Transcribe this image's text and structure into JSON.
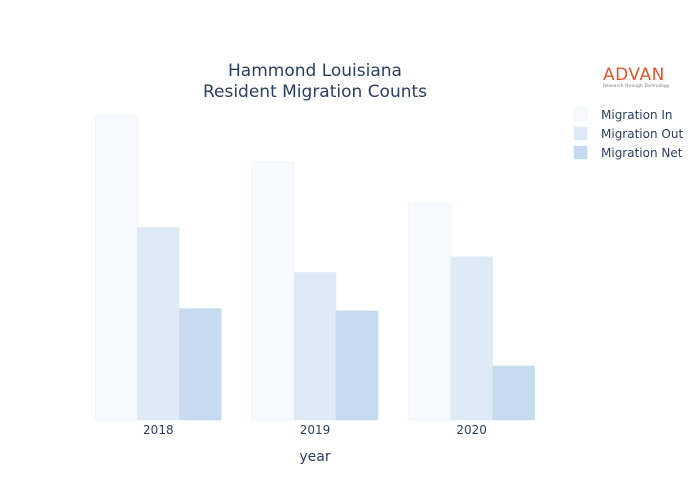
{
  "chart_data": {
    "type": "bar",
    "title_lines": [
      "Hammond Louisiana",
      "Resident Migration Counts"
    ],
    "xlabel": "year",
    "ylabel": "",
    "categories": [
      "2018",
      "2019",
      "2020"
    ],
    "series": [
      {
        "name": "Migration In",
        "values": [
          5400,
          4580,
          3840
        ],
        "fill": "#f7fbff",
        "stroke": "#e9eff6"
      },
      {
        "name": "Migration Out",
        "values": [
          3420,
          2620,
          2900
        ],
        "fill": "#deebf7",
        "stroke": "#deebf7"
      },
      {
        "name": "Migration Net",
        "values": [
          1980,
          1940,
          960
        ],
        "fill": "#c6dbef",
        "stroke": "#c6dbef"
      }
    ],
    "ylim": [
      0,
      5400
    ],
    "grid": false,
    "legend_position": "top-right"
  },
  "logo": {
    "brand": "ADVAN",
    "tagline": "Research through Technology",
    "brand_color": "#e0572a"
  }
}
